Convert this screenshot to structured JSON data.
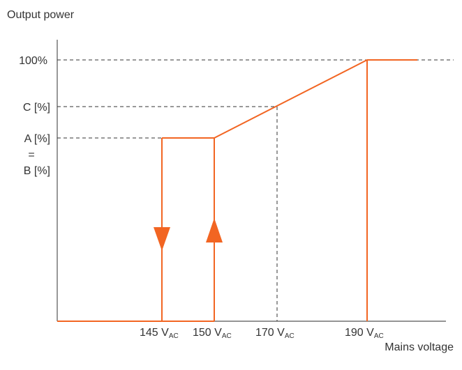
{
  "chart_data": {
    "type": "line",
    "ylabel": "Output power",
    "xlabel": "Mains voltage",
    "y_ticks": [
      {
        "key": "full",
        "label": "100%"
      },
      {
        "key": "C",
        "label": "C [%]"
      },
      {
        "key": "AB",
        "label": "A [%]",
        "label_eq": "=",
        "label_b": "B [%]"
      }
    ],
    "x_ticks": [
      {
        "value": 145,
        "main": "145 V",
        "sub": "AC"
      },
      {
        "value": 150,
        "main": "150 V",
        "sub": "AC"
      },
      {
        "value": 170,
        "main": "170 V",
        "sub": "AC"
      },
      {
        "value": 190,
        "main": "190 V",
        "sub": "AC"
      }
    ],
    "curve": {
      "points": [
        {
          "x": 150,
          "y": "A=B"
        },
        {
          "x": 170,
          "y": "C"
        },
        {
          "x": 190,
          "y": "100%"
        }
      ],
      "plateau_from_x": 145,
      "plateau_to_x_end": "beyond 190",
      "decrease_arrow_x": 145,
      "decrease_arrow_direction": "down",
      "increase_arrow_x": 150,
      "increase_arrow_direction": "up",
      "zero_level": "0"
    },
    "reference_lines": [
      "100%",
      "C",
      "A=B",
      "x=170"
    ],
    "colors": {
      "curve": "#f26522",
      "axis": "#555555",
      "guide": "#333333",
      "text": "#333333"
    }
  }
}
